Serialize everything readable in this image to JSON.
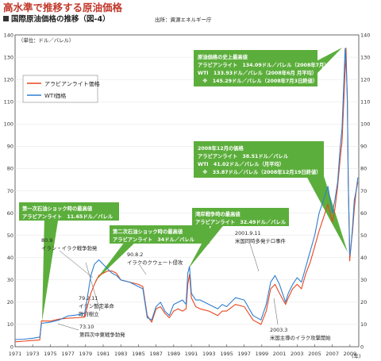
{
  "title": "高水準で推移する原油価格",
  "subtitle": "国際原油価格の推移（図-4）",
  "source": "出所：資源エネルギー庁",
  "colors": {
    "arabian": "#e8461e",
    "wti": "#2f7fd0",
    "green": "#5cae3c",
    "title": "#c0392b"
  },
  "chart_data": {
    "type": "line",
    "ylabel": "（単位：ドル／バレル）",
    "xlabel_unit": "(年)",
    "xlim": [
      1971,
      2010
    ],
    "ylim": [
      0,
      140
    ],
    "y_ticks": [
      0,
      10,
      20,
      30,
      40,
      50,
      60,
      70,
      80,
      90,
      100,
      110,
      120,
      130,
      140
    ],
    "x_tick_labels": [
      "1971",
      "1973",
      "1975",
      "1977",
      "1979",
      "1981",
      "1983",
      "1985",
      "1987",
      "1989",
      "1991",
      "1993",
      "1995",
      "1997",
      "1999",
      "2001",
      "2003",
      "2005",
      "2007",
      "2009"
    ],
    "series": [
      {
        "name": "アラビアンライト価格",
        "color": "#e8461e",
        "points": [
          [
            1971.0,
            2.2
          ],
          [
            1972.0,
            2.5
          ],
          [
            1973.0,
            2.8
          ],
          [
            1973.8,
            3.0
          ],
          [
            1974.0,
            11.6
          ],
          [
            1975.0,
            11.5
          ],
          [
            1976.0,
            12.4
          ],
          [
            1977.0,
            12.8
          ],
          [
            1978.0,
            13.0
          ],
          [
            1978.9,
            13.3
          ],
          [
            1979.2,
            18
          ],
          [
            1979.6,
            24
          ],
          [
            1980.0,
            28
          ],
          [
            1980.5,
            32
          ],
          [
            1981.0,
            33
          ],
          [
            1981.5,
            34
          ],
          [
            1982.0,
            34
          ],
          [
            1982.5,
            33
          ],
          [
            1983.0,
            30
          ],
          [
            1984.0,
            29
          ],
          [
            1985.0,
            28
          ],
          [
            1985.5,
            27
          ],
          [
            1986.0,
            14
          ],
          [
            1986.5,
            11
          ],
          [
            1987.0,
            17
          ],
          [
            1987.5,
            18
          ],
          [
            1988.0,
            15
          ],
          [
            1988.5,
            13
          ],
          [
            1989.0,
            16
          ],
          [
            1989.5,
            17
          ],
          [
            1990.0,
            16
          ],
          [
            1990.4,
            17
          ],
          [
            1990.6,
            28
          ],
          [
            1990.8,
            32.5
          ],
          [
            1991.0,
            22
          ],
          [
            1991.5,
            18
          ],
          [
            1992.0,
            17
          ],
          [
            1993.0,
            16
          ],
          [
            1994.0,
            14
          ],
          [
            1994.5,
            16
          ],
          [
            1995.0,
            16
          ],
          [
            1996.0,
            19
          ],
          [
            1997.0,
            18
          ],
          [
            1998.0,
            12
          ],
          [
            1998.9,
            10
          ],
          [
            1999.5,
            16
          ],
          [
            2000.0,
            26
          ],
          [
            2000.5,
            28
          ],
          [
            2001.0,
            24
          ],
          [
            2001.7,
            19
          ],
          [
            2002.0,
            22
          ],
          [
            2002.5,
            26
          ],
          [
            2003.0,
            28
          ],
          [
            2003.5,
            26
          ],
          [
            2004.0,
            33
          ],
          [
            2004.5,
            38
          ],
          [
            2005.0,
            45
          ],
          [
            2005.5,
            52
          ],
          [
            2006.0,
            58
          ],
          [
            2006.5,
            64
          ],
          [
            2007.0,
            56
          ],
          [
            2007.3,
            62
          ],
          [
            2007.6,
            72
          ],
          [
            2007.9,
            85
          ],
          [
            2008.1,
            92
          ],
          [
            2008.3,
            110
          ],
          [
            2008.45,
            124
          ],
          [
            2008.55,
            134.1
          ],
          [
            2008.7,
            110
          ],
          [
            2008.8,
            75
          ],
          [
            2008.9,
            55
          ],
          [
            2008.97,
            38.5
          ],
          [
            2009.1,
            45
          ],
          [
            2009.3,
            52
          ],
          [
            2009.5,
            62
          ],
          [
            2009.7,
            70
          ],
          [
            2009.9,
            74
          ]
        ]
      },
      {
        "name": "WTI価格",
        "color": "#2f7fd0",
        "points": [
          [
            1971.0,
            3.2
          ],
          [
            1972.0,
            3.4
          ],
          [
            1973.0,
            3.8
          ],
          [
            1973.8,
            4.3
          ],
          [
            1974.0,
            10.5
          ],
          [
            1975.0,
            11.0
          ],
          [
            1976.0,
            12.0
          ],
          [
            1977.0,
            13.8
          ],
          [
            1978.0,
            14.3
          ],
          [
            1978.9,
            15.0
          ],
          [
            1979.2,
            22
          ],
          [
            1979.6,
            32
          ],
          [
            1980.0,
            37
          ],
          [
            1980.5,
            39
          ],
          [
            1981.0,
            37
          ],
          [
            1981.5,
            35
          ],
          [
            1982.0,
            33
          ],
          [
            1982.5,
            32
          ],
          [
            1983.0,
            30
          ],
          [
            1984.0,
            29
          ],
          [
            1985.0,
            27
          ],
          [
            1985.5,
            26
          ],
          [
            1986.0,
            13
          ],
          [
            1986.5,
            12
          ],
          [
            1987.0,
            18
          ],
          [
            1987.5,
            20
          ],
          [
            1988.0,
            16
          ],
          [
            1988.5,
            14
          ],
          [
            1989.0,
            19
          ],
          [
            1989.5,
            20
          ],
          [
            1990.0,
            21
          ],
          [
            1990.4,
            19
          ],
          [
            1990.6,
            33
          ],
          [
            1990.8,
            36
          ],
          [
            1991.0,
            24
          ],
          [
            1991.5,
            21
          ],
          [
            1992.0,
            21
          ],
          [
            1993.0,
            19
          ],
          [
            1994.0,
            17
          ],
          [
            1994.5,
            19
          ],
          [
            1995.0,
            18
          ],
          [
            1996.0,
            22
          ],
          [
            1997.0,
            21
          ],
          [
            1998.0,
            14
          ],
          [
            1998.9,
            12
          ],
          [
            1999.5,
            19
          ],
          [
            2000.0,
            29
          ],
          [
            2000.5,
            32
          ],
          [
            2001.0,
            28
          ],
          [
            2001.7,
            20
          ],
          [
            2002.0,
            24
          ],
          [
            2002.5,
            28
          ],
          [
            2003.0,
            31
          ],
          [
            2003.5,
            29
          ],
          [
            2004.0,
            36
          ],
          [
            2004.5,
            43
          ],
          [
            2005.0,
            50
          ],
          [
            2005.5,
            60
          ],
          [
            2006.0,
            66
          ],
          [
            2006.5,
            72
          ],
          [
            2007.0,
            60
          ],
          [
            2007.3,
            66
          ],
          [
            2007.6,
            74
          ],
          [
            2007.9,
            90
          ],
          [
            2008.1,
            98
          ],
          [
            2008.3,
            118
          ],
          [
            2008.45,
            133.9
          ],
          [
            2008.55,
            128
          ],
          [
            2008.7,
            112
          ],
          [
            2008.8,
            75
          ],
          [
            2008.9,
            56
          ],
          [
            2008.97,
            41.0
          ],
          [
            2009.1,
            44
          ],
          [
            2009.3,
            54
          ],
          [
            2009.5,
            66
          ],
          [
            2009.7,
            70
          ],
          [
            2009.9,
            76
          ]
        ]
      }
    ]
  },
  "green_boxes": [
    {
      "lines": [
        "原油価格の史上最高値",
        "アラビアンライト　134.09ドル／バレル（2008年7月）",
        "WTI　133.93ドル／バレル（2008年6月 月平均）",
        "　※　145.29ドル／バレル（2008年7月3日終値）"
      ]
    },
    {
      "lines": [
        "2008年12月の価格",
        "アラビアンライト　38.51ドル／バレル",
        "WTI　41.02ドル／バレル（月平均）",
        "　※　33.87ドル／バレル（2008年12月19日終値）"
      ]
    },
    {
      "lines": [
        "第一次石油ショック時の最高値",
        "アラビアンライト　11.65ドル／バレル"
      ]
    },
    {
      "lines": [
        "第二次石油ショック時の最高値",
        "アラビアンライト　34ドル／バレル"
      ]
    },
    {
      "lines": [
        "湾岸戦争時の最高値",
        "アラビアンライト　32.49ドル／バレル"
      ]
    }
  ],
  "annotations": [
    {
      "lines": [
        "80.9",
        "イラン・イラク戦争勃発"
      ]
    },
    {
      "lines": [
        "90.8.2",
        "イラクのクウェート侵攻"
      ]
    },
    {
      "lines": [
        "79.2.11",
        "イラン暫定革命",
        "政府樹立"
      ]
    },
    {
      "lines": [
        "73.10",
        "第四次中東戦争勃発"
      ]
    },
    {
      "lines": [
        "2001.9.11",
        "米国同時多発テロ事件"
      ]
    },
    {
      "lines": [
        "2003.3",
        "米国主導のイラク攻撃開始"
      ]
    }
  ]
}
